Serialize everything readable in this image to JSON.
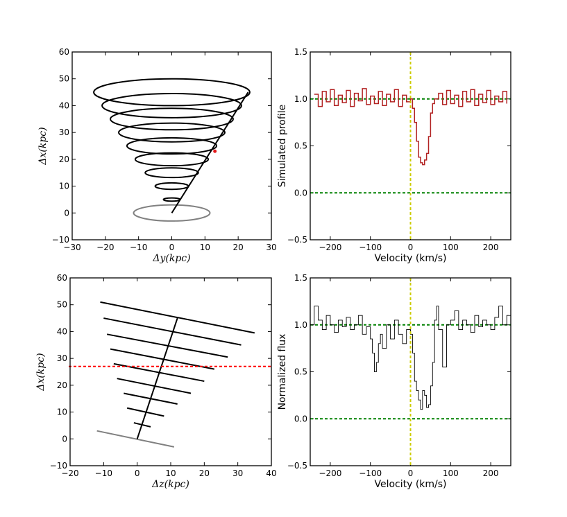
{
  "colors": {
    "axis": "#000000",
    "helix": "#000000",
    "base_ring": "#808080",
    "marker_red": "#e41a1c",
    "dashed_green": "#008000",
    "dashed_yellow": "#cccc00",
    "dashed_red": "#ff0000",
    "simulated_line": "#b22222"
  },
  "chart_data": [
    {
      "id": "top-left",
      "type": "line",
      "title": "",
      "xlabel": "Δy(kpc)",
      "ylabel": "Δx(kpc)",
      "xlim": [
        -30,
        30
      ],
      "ylim": [
        -10,
        60
      ],
      "xticks": [
        "−30",
        "−20",
        "−10",
        "0",
        "10",
        "20",
        "30"
      ],
      "yticks": [
        "−10",
        "0",
        "10",
        "20",
        "30",
        "40",
        "50",
        "60"
      ],
      "ellipses": [
        {
          "cx": 0,
          "cy": 5,
          "rx": 2.5,
          "ry": 0.6
        },
        {
          "cx": 0,
          "cy": 10,
          "rx": 5,
          "ry": 1.2
        },
        {
          "cx": 0,
          "cy": 15,
          "rx": 8,
          "ry": 1.8
        },
        {
          "cx": 0,
          "cy": 20,
          "rx": 11,
          "ry": 2.4
        },
        {
          "cx": 0,
          "cy": 25,
          "rx": 13.5,
          "ry": 3
        },
        {
          "cx": 0,
          "cy": 30,
          "rx": 16,
          "ry": 3.5
        },
        {
          "cx": 0,
          "cy": 35,
          "rx": 18.5,
          "ry": 4
        },
        {
          "cx": 0,
          "cy": 40,
          "rx": 21,
          "ry": 4.5
        },
        {
          "cx": 0,
          "cy": 45,
          "rx": 23.5,
          "ry": 5
        }
      ],
      "base_ring": {
        "cx": 0,
        "cy": 0,
        "rx": 11.5,
        "ry": 3
      },
      "axis_line": [
        [
          0,
          0
        ],
        [
          23,
          45
        ]
      ],
      "marker": {
        "x": 13,
        "y": 23
      }
    },
    {
      "id": "bottom-left",
      "type": "line",
      "title": "",
      "xlabel": "Δz(kpc)",
      "ylabel": "Δx(kpc)",
      "xlim": [
        -20,
        40
      ],
      "ylim": [
        -10,
        60
      ],
      "xticks": [
        "−20",
        "−10",
        "0",
        "10",
        "20",
        "30",
        "40"
      ],
      "yticks": [
        "−10",
        "0",
        "10",
        "20",
        "30",
        "40",
        "50",
        "60"
      ],
      "segments": [
        [
          [
            -1,
            6
          ],
          [
            4,
            4.5
          ]
        ],
        [
          [
            -3,
            11.5
          ],
          [
            8,
            8.5
          ]
        ],
        [
          [
            -4,
            17
          ],
          [
            12,
            13
          ]
        ],
        [
          [
            -6,
            22.5
          ],
          [
            16,
            17
          ]
        ],
        [
          [
            -7,
            28
          ],
          [
            20,
            21.5
          ]
        ],
        [
          [
            -8,
            33.5
          ],
          [
            23,
            26
          ]
        ],
        [
          [
            -9,
            39
          ],
          [
            27,
            30.5
          ]
        ],
        [
          [
            -10,
            45
          ],
          [
            31,
            35
          ]
        ],
        [
          [
            -11,
            51
          ],
          [
            35,
            39.5
          ]
        ]
      ],
      "base_segment": [
        [
          -12,
          3
        ],
        [
          11,
          -3
        ]
      ],
      "axis_line": [
        [
          0,
          0
        ],
        [
          12,
          45
        ]
      ],
      "horizontal_line_y": 27
    },
    {
      "id": "top-right",
      "type": "line",
      "title": "",
      "xlabel": "Velocity (km/s)",
      "ylabel": "Simulated profile",
      "xlim": [
        -250,
        250
      ],
      "ylim": [
        -0.5,
        1.5
      ],
      "xticks": [
        "−200",
        "−100",
        "0",
        "100",
        "200"
      ],
      "yticks": [
        "−0.5",
        "0.0",
        "0.5",
        "1.0",
        "1.5"
      ],
      "reference_lines": {
        "y": [
          0,
          1
        ],
        "x": [
          0
        ]
      },
      "series": [
        {
          "x": [
            -240,
            -230,
            -220,
            -210,
            -200,
            -190,
            -180,
            -170,
            -160,
            -150,
            -140,
            -130,
            -120,
            -110,
            -100,
            -90,
            -80,
            -70,
            -60,
            -50,
            -40,
            -30,
            -20,
            -10,
            0,
            5,
            10,
            15,
            20,
            25,
            30,
            35,
            40,
            45,
            50,
            55,
            60,
            70,
            80,
            90,
            100,
            110,
            120,
            130,
            140,
            150,
            160,
            170,
            180,
            190,
            200,
            210,
            220,
            230,
            240
          ],
          "values": [
            1.05,
            0.92,
            1.08,
            0.97,
            1.1,
            0.93,
            1.04,
            0.96,
            1.09,
            0.92,
            1.06,
            0.98,
            1.11,
            0.94,
            1.03,
            0.95,
            1.08,
            0.93,
            1.05,
            0.97,
            1.1,
            0.92,
            1.04,
            0.97,
            1.0,
            0.9,
            0.75,
            0.55,
            0.38,
            0.32,
            0.3,
            0.35,
            0.42,
            0.6,
            0.85,
            0.95,
            1.0,
            1.06,
            0.94,
            1.09,
            0.95,
            1.04,
            0.92,
            1.08,
            0.97,
            1.1,
            0.93,
            1.05,
            0.96,
            1.09,
            0.94,
            1.03,
            0.97,
            1.08,
            0.95
          ]
        }
      ]
    },
    {
      "id": "bottom-right",
      "type": "line",
      "title": "",
      "xlabel": "Velocity (km/s)",
      "ylabel": "Normalized flux",
      "xlim": [
        -250,
        250
      ],
      "ylim": [
        -0.5,
        1.5
      ],
      "xticks": [
        "−200",
        "−100",
        "0",
        "100",
        "200"
      ],
      "yticks": [
        "−0.5",
        "0.0",
        "0.5",
        "1.0",
        "1.5"
      ],
      "reference_lines": {
        "y": [
          0,
          1
        ],
        "x": [
          0
        ]
      },
      "series": [
        {
          "x": [
            -250,
            -240,
            -230,
            -220,
            -210,
            -200,
            -190,
            -180,
            -170,
            -160,
            -150,
            -140,
            -130,
            -120,
            -110,
            -100,
            -95,
            -90,
            -85,
            -80,
            -75,
            -70,
            -60,
            -50,
            -40,
            -30,
            -20,
            -10,
            0,
            5,
            10,
            15,
            20,
            25,
            30,
            35,
            40,
            45,
            50,
            55,
            60,
            65,
            70,
            80,
            90,
            100,
            110,
            120,
            130,
            140,
            150,
            160,
            170,
            180,
            190,
            200,
            210,
            220,
            230,
            240,
            250
          ],
          "values": [
            1.0,
            1.2,
            1.05,
            0.95,
            1.1,
            1.0,
            0.92,
            1.05,
            0.98,
            1.08,
            0.95,
            1.0,
            1.1,
            0.9,
            0.98,
            0.85,
            0.7,
            0.5,
            0.6,
            0.8,
            0.9,
            0.75,
            1.0,
            0.85,
            1.05,
            0.9,
            0.8,
            0.95,
            0.9,
            0.7,
            0.4,
            0.3,
            0.2,
            0.1,
            0.3,
            0.25,
            0.12,
            0.15,
            0.35,
            0.6,
            1.05,
            1.2,
            0.95,
            0.55,
            1.0,
            1.05,
            1.15,
            0.95,
            1.05,
            1.0,
            0.92,
            1.1,
            0.98,
            1.05,
            1.0,
            0.95,
            1.08,
            1.2,
            1.0,
            1.1,
            1.0
          ]
        }
      ]
    }
  ]
}
